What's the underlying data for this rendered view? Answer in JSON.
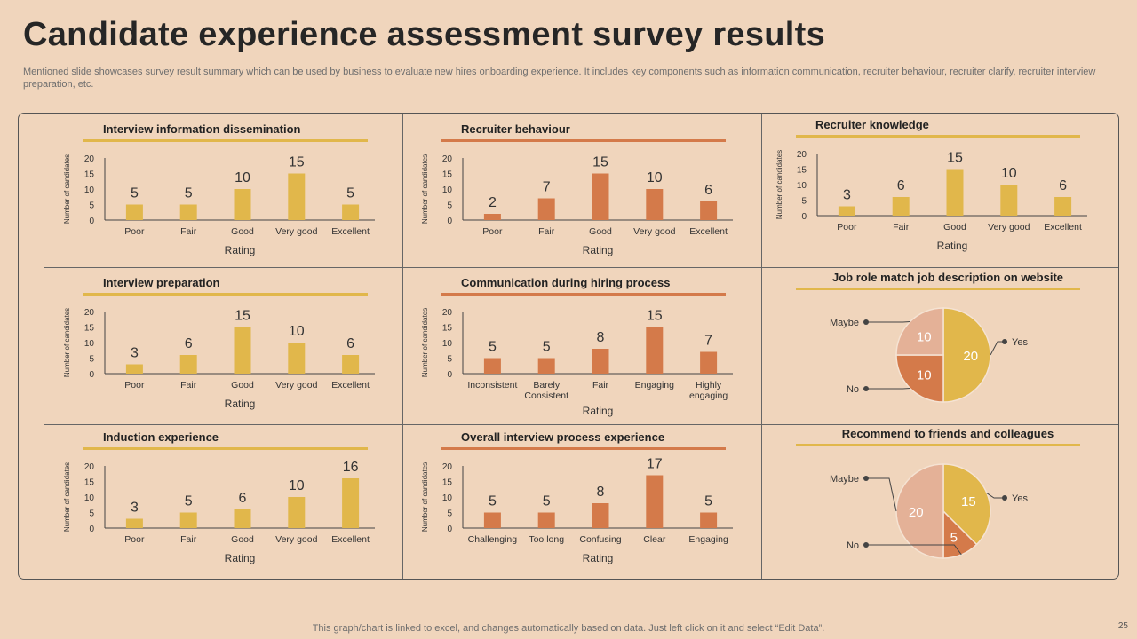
{
  "slide": {
    "title": "Candidate experience assessment survey results",
    "subtitle": "Mentioned slide showcases survey result summary which can be used by business to evaluate new hires onboarding experience. It includes key components such as information communication, recruiter behaviour, recruiter clarify, recruiter interview preparation, etc.",
    "footer": "This graph/chart is linked to excel,  and changes automatically based on data. Just left click on it and select “Edit Data”.",
    "page_number": "25"
  },
  "colors": {
    "gold": "#e1b74b",
    "orange": "#d47a4a",
    "peach": "#e4b197",
    "background": "#f0d5bc"
  },
  "chart_data": [
    {
      "type": "bar",
      "title": "Interview information dissemination",
      "color": "#e1b74b",
      "categories": [
        "Poor",
        "Fair",
        "Good",
        "Very good",
        "Excellent"
      ],
      "values": [
        5,
        5,
        10,
        15,
        5
      ],
      "xlabel": "Rating",
      "ylabel": "Number of candidates",
      "ylim": [
        0,
        20
      ],
      "yticks": [
        0,
        5,
        10,
        15,
        20
      ]
    },
    {
      "type": "bar",
      "title": "Recruiter behaviour",
      "color": "#d47a4a",
      "categories": [
        "Poor",
        "Fair",
        "Good",
        "Very good",
        "Excellent"
      ],
      "values": [
        2,
        7,
        15,
        10,
        6
      ],
      "xlabel": "Rating",
      "ylabel": "Number of candidates",
      "ylim": [
        0,
        20
      ],
      "yticks": [
        0,
        5,
        10,
        15,
        20
      ]
    },
    {
      "type": "bar",
      "title": "Recruiter knowledge",
      "color": "#e1b74b",
      "categories": [
        "Poor",
        "Fair",
        "Good",
        "Very good",
        "Excellent"
      ],
      "values": [
        3,
        6,
        15,
        10,
        6
      ],
      "xlabel": "Rating",
      "ylabel": "Number of candidates",
      "ylim": [
        0,
        20
      ],
      "yticks": [
        0,
        5,
        10,
        15,
        20
      ]
    },
    {
      "type": "bar",
      "title": "Interview preparation",
      "color": "#e1b74b",
      "categories": [
        "Poor",
        "Fair",
        "Good",
        "Very good",
        "Excellent"
      ],
      "values": [
        3,
        6,
        15,
        10,
        6
      ],
      "xlabel": "Rating",
      "ylabel": "Number of candidates",
      "ylim": [
        0,
        20
      ],
      "yticks": [
        0,
        5,
        10,
        15,
        20
      ]
    },
    {
      "type": "bar",
      "title": "Communication during hiring process",
      "color": "#d47a4a",
      "categories": [
        "Inconsistent",
        "Barely Consistent",
        "Fair",
        "Engaging",
        "Highly engaging"
      ],
      "values": [
        5,
        5,
        8,
        15,
        7
      ],
      "xlabel": "Rating",
      "ylabel": "Number of candidates",
      "ylim": [
        0,
        20
      ],
      "yticks": [
        0,
        5,
        10,
        15,
        20
      ]
    },
    {
      "type": "pie",
      "title": "Job role match job description on website",
      "labels": [
        "Yes",
        "No",
        "Maybe"
      ],
      "values": [
        20,
        10,
        10
      ],
      "colors": [
        "#e1b74b",
        "#d47a4a",
        "#e4b197"
      ]
    },
    {
      "type": "bar",
      "title": "Induction experience",
      "color": "#e1b74b",
      "categories": [
        "Poor",
        "Fair",
        "Good",
        "Very good",
        "Excellent"
      ],
      "values": [
        3,
        5,
        6,
        10,
        16
      ],
      "xlabel": "Rating",
      "ylabel": "Number of candidates",
      "ylim": [
        0,
        20
      ],
      "yticks": [
        0,
        5,
        10,
        15,
        20
      ]
    },
    {
      "type": "bar",
      "title": "Overall interview process experience",
      "color": "#d47a4a",
      "categories": [
        "Challenging",
        "Too long",
        "Confusing",
        "Clear",
        "Engaging"
      ],
      "values": [
        5,
        5,
        8,
        17,
        5
      ],
      "xlabel": "Rating",
      "ylabel": "Number of candidates",
      "ylim": [
        0,
        20
      ],
      "yticks": [
        0,
        5,
        10,
        15,
        20
      ]
    },
    {
      "type": "pie",
      "title": "Recommend to friends and colleagues",
      "labels": [
        "Yes",
        "No",
        "Maybe"
      ],
      "values": [
        15,
        5,
        20
      ],
      "colors": [
        "#e1b74b",
        "#d47a4a",
        "#e4b197"
      ]
    }
  ]
}
